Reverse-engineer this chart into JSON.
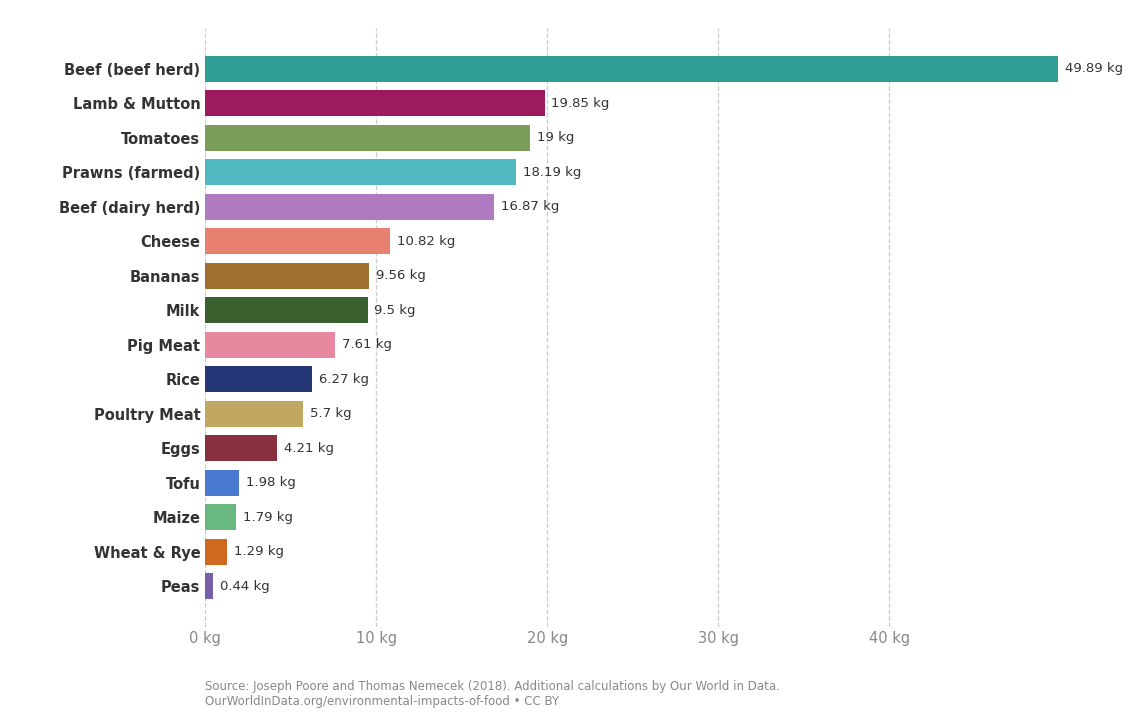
{
  "categories": [
    "Beef (beef herd)",
    "Lamb & Mutton",
    "Tomatoes",
    "Prawns (farmed)",
    "Beef (dairy herd)",
    "Cheese",
    "Bananas",
    "Milk",
    "Pig Meat",
    "Rice",
    "Poultry Meat",
    "Eggs",
    "Tofu",
    "Maize",
    "Wheat & Rye",
    "Peas"
  ],
  "values": [
    49.89,
    19.85,
    19.0,
    18.19,
    16.87,
    10.82,
    9.56,
    9.5,
    7.61,
    6.27,
    5.7,
    4.21,
    1.98,
    1.79,
    1.29,
    0.44
  ],
  "labels": [
    "49.89 kg",
    "19.85 kg",
    "19 kg",
    "18.19 kg",
    "16.87 kg",
    "10.82 kg",
    "9.56 kg",
    "9.5 kg",
    "7.61 kg",
    "6.27 kg",
    "5.7 kg",
    "4.21 kg",
    "1.98 kg",
    "1.79 kg",
    "1.29 kg",
    "0.44 kg"
  ],
  "colors": [
    "#2e9e96",
    "#9e1a5e",
    "#7a9e5a",
    "#50b8c0",
    "#b07ac0",
    "#e88070",
    "#a07030",
    "#3a6030",
    "#e888a0",
    "#243878",
    "#c0a860",
    "#883040",
    "#4878d0",
    "#68b880",
    "#d06820",
    "#7860a8"
  ],
  "xlim": [
    0,
    52
  ],
  "xticks": [
    0,
    10,
    20,
    30,
    40
  ],
  "xticklabels": [
    "0 kg",
    "10 kg",
    "20 kg",
    "30 kg",
    "40 kg"
  ],
  "source_line1": "Source: Joseph Poore and Thomas Nemecek (2018). Additional calculations by Our World in Data.",
  "source_line2": "OurWorldInData.org/environmental-impacts-of-food • CC BY",
  "background_color": "#ffffff",
  "grid_color": "#cccccc",
  "bar_height": 0.75
}
